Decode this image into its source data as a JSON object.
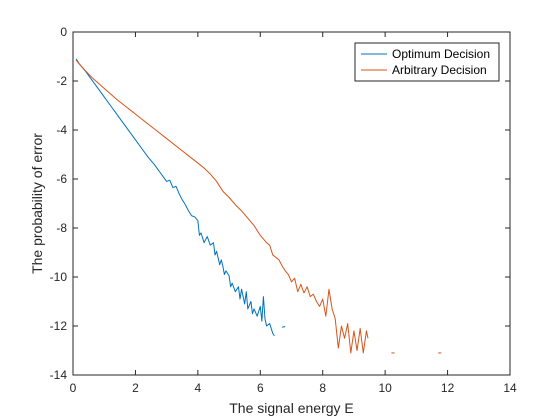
{
  "chart_data": {
    "type": "line",
    "title": "",
    "xlabel": "The signal energy E",
    "ylabel": "The probability of error",
    "xlim": [
      0,
      14
    ],
    "ylim": [
      -14,
      0
    ],
    "xticks": [
      0,
      2,
      4,
      6,
      8,
      10,
      12,
      14
    ],
    "yticks": [
      0,
      -2,
      -4,
      -6,
      -8,
      -10,
      -12,
      -14
    ],
    "grid": false,
    "legend_position": "top-right",
    "series": [
      {
        "name": "Optimum Decision",
        "color": "#0072BD",
        "segments": [
          [
            [
              0.1,
              -1.1
            ],
            [
              0.2,
              -1.3
            ],
            [
              0.4,
              -1.6
            ],
            [
              0.6,
              -1.95
            ],
            [
              0.8,
              -2.3
            ],
            [
              1.0,
              -2.65
            ],
            [
              1.2,
              -3.0
            ],
            [
              1.4,
              -3.35
            ],
            [
              1.6,
              -3.7
            ],
            [
              1.8,
              -4.05
            ],
            [
              2.0,
              -4.4
            ],
            [
              2.2,
              -4.75
            ],
            [
              2.4,
              -5.1
            ],
            [
              2.6,
              -5.4
            ],
            [
              2.8,
              -5.75
            ],
            [
              3.0,
              -6.1
            ],
            [
              3.1,
              -6.05
            ],
            [
              3.2,
              -6.35
            ],
            [
              3.3,
              -6.3
            ],
            [
              3.4,
              -6.6
            ],
            [
              3.5,
              -6.85
            ],
            [
              3.6,
              -7.05
            ],
            [
              3.7,
              -7.3
            ],
            [
              3.8,
              -7.5
            ],
            [
              3.9,
              -7.55
            ],
            [
              4.0,
              -7.7
            ],
            [
              4.05,
              -8.3
            ],
            [
              4.1,
              -8.2
            ],
            [
              4.2,
              -8.6
            ],
            [
              4.3,
              -8.35
            ],
            [
              4.4,
              -8.7
            ],
            [
              4.5,
              -8.6
            ],
            [
              4.55,
              -9.1
            ],
            [
              4.6,
              -8.95
            ],
            [
              4.7,
              -9.5
            ],
            [
              4.75,
              -9.3
            ],
            [
              4.8,
              -9.55
            ],
            [
              4.85,
              -9.9
            ],
            [
              4.9,
              -9.75
            ],
            [
              5.0,
              -9.95
            ],
            [
              5.05,
              -10.4
            ],
            [
              5.1,
              -10.25
            ],
            [
              5.2,
              -10.6
            ],
            [
              5.3,
              -10.4
            ],
            [
              5.35,
              -10.9
            ],
            [
              5.4,
              -10.5
            ],
            [
              5.5,
              -11.1
            ],
            [
              5.55,
              -10.6
            ],
            [
              5.6,
              -11.3
            ],
            [
              5.7,
              -11.0
            ],
            [
              5.75,
              -11.5
            ],
            [
              5.8,
              -11.3
            ],
            [
              5.9,
              -11.6
            ],
            [
              6.0,
              -11.2
            ],
            [
              6.05,
              -11.8
            ],
            [
              6.1,
              -10.8
            ],
            [
              6.15,
              -11.7
            ],
            [
              6.2,
              -12.0
            ],
            [
              6.3,
              -11.9
            ],
            [
              6.4,
              -12.3
            ],
            [
              6.45,
              -12.4
            ]
          ],
          [
            [
              6.7,
              -12.05
            ],
            [
              6.8,
              -12.02
            ]
          ]
        ]
      },
      {
        "name": "Arbitrary Decision",
        "color": "#D95319",
        "segments": [
          [
            [
              0.1,
              -1.15
            ],
            [
              0.3,
              -1.45
            ],
            [
              0.6,
              -1.85
            ],
            [
              1.0,
              -2.3
            ],
            [
              1.4,
              -2.75
            ],
            [
              1.8,
              -3.15
            ],
            [
              2.2,
              -3.55
            ],
            [
              2.6,
              -3.95
            ],
            [
              3.0,
              -4.35
            ],
            [
              3.4,
              -4.75
            ],
            [
              3.8,
              -5.15
            ],
            [
              4.0,
              -5.35
            ],
            [
              4.2,
              -5.55
            ],
            [
              4.4,
              -5.8
            ],
            [
              4.6,
              -6.1
            ],
            [
              4.8,
              -6.5
            ],
            [
              5.0,
              -6.75
            ],
            [
              5.2,
              -7.05
            ],
            [
              5.4,
              -7.3
            ],
            [
              5.6,
              -7.6
            ],
            [
              5.8,
              -7.9
            ],
            [
              6.0,
              -8.3
            ],
            [
              6.2,
              -8.6
            ],
            [
              6.3,
              -8.7
            ],
            [
              6.4,
              -9.1
            ],
            [
              6.6,
              -9.3
            ],
            [
              6.7,
              -9.55
            ],
            [
              6.8,
              -9.75
            ],
            [
              6.9,
              -9.9
            ],
            [
              7.0,
              -10.2
            ],
            [
              7.1,
              -10.05
            ],
            [
              7.2,
              -10.6
            ],
            [
              7.3,
              -10.3
            ],
            [
              7.4,
              -10.65
            ],
            [
              7.5,
              -10.4
            ],
            [
              7.6,
              -10.8
            ],
            [
              7.7,
              -10.7
            ],
            [
              7.8,
              -11.0
            ],
            [
              7.9,
              -11.2
            ],
            [
              8.0,
              -10.9
            ],
            [
              8.1,
              -11.6
            ],
            [
              8.2,
              -10.5
            ],
            [
              8.3,
              -11.3
            ],
            [
              8.4,
              -11.7
            ],
            [
              8.5,
              -12.9
            ],
            [
              8.6,
              -12.0
            ],
            [
              8.7,
              -12.5
            ],
            [
              8.8,
              -11.9
            ],
            [
              8.9,
              -13.1
            ],
            [
              9.0,
              -12.2
            ],
            [
              9.1,
              -13.0
            ],
            [
              9.2,
              -12.1
            ],
            [
              9.3,
              -13.1
            ],
            [
              9.4,
              -12.2
            ],
            [
              9.45,
              -12.5
            ]
          ],
          [
            [
              10.2,
              -13.1
            ],
            [
              10.3,
              -13.1
            ]
          ],
          [
            [
              11.7,
              -13.1
            ],
            [
              11.8,
              -13.1
            ]
          ]
        ]
      }
    ]
  }
}
